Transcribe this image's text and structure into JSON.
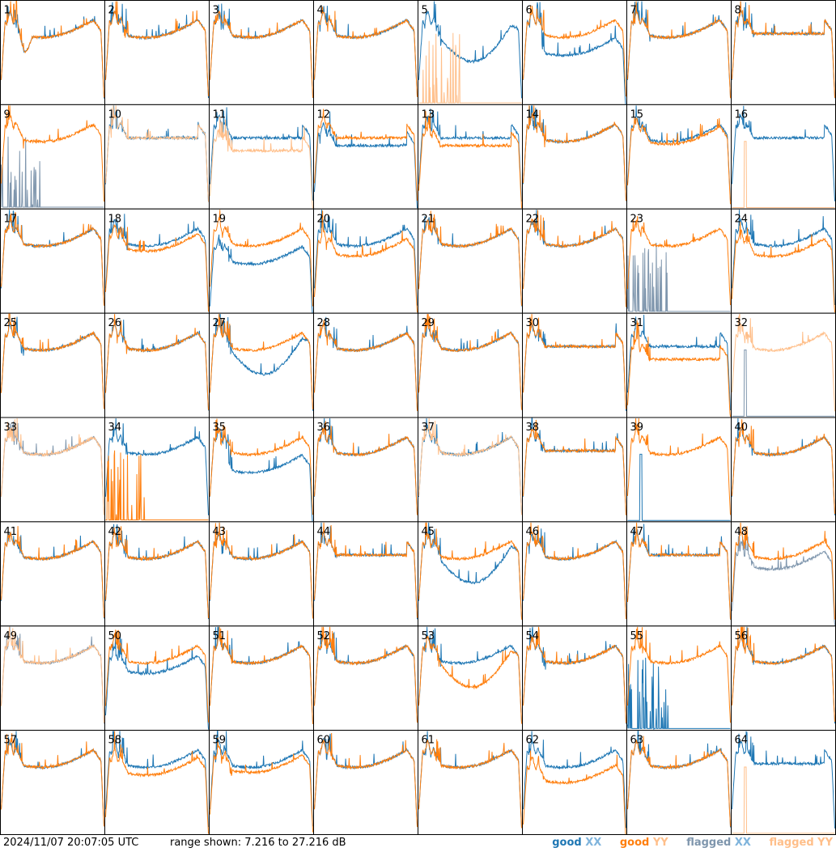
{
  "chart_data": {
    "type": "line",
    "layout_grid": "8x8",
    "timestamp": "2024/11/07 20:07:05 UTC",
    "range_text": "range shown: 7.216 to 27.216 dB",
    "ylim": [
      7.216,
      27.216
    ],
    "legend": [
      {
        "key": "good_xx",
        "prefix": "good",
        "pol": "XX",
        "color": "#1f77b4"
      },
      {
        "key": "good_yy",
        "prefix": "good",
        "pol": "YY",
        "color": "#ff7f0e"
      },
      {
        "key": "flagged_xx",
        "prefix": "flagged",
        "pol": "XX",
        "color": "#7f96ad"
      },
      {
        "key": "flagged_yy",
        "prefix": "flagged",
        "pol": "YY",
        "color": "#ffbf8a"
      }
    ],
    "panels": [
      {
        "id": "1",
        "xx": "good",
        "yy": "good",
        "shape": "dip",
        "xx_offset": 0.0,
        "yy_offset": 0.0
      },
      {
        "id": "2",
        "xx": "good",
        "yy": "good",
        "shape": "normal",
        "xx_offset": 0.0,
        "yy_offset": 0.0
      },
      {
        "id": "3",
        "xx": "good",
        "yy": "good",
        "shape": "normal",
        "xx_offset": 0.0,
        "yy_offset": 0.0
      },
      {
        "id": "4",
        "xx": "good",
        "yy": "good",
        "shape": "normal",
        "xx_offset": 0.0,
        "yy_offset": 0.0
      },
      {
        "id": "5",
        "xx": "good",
        "yy": "flagged",
        "shape": "normal",
        "xx_offset": 0.0,
        "yy_offset": 0.0,
        "xx_mod": "deepdip",
        "yy_mod": "spiky"
      },
      {
        "id": "6",
        "xx": "good",
        "yy": "good",
        "shape": "normal",
        "xx_offset": 0.0,
        "yy_offset": 0.0,
        "xx_mod": "dropped"
      },
      {
        "id": "7",
        "xx": "good",
        "yy": "good",
        "shape": "normal",
        "xx_offset": 0.0,
        "yy_offset": 0.0
      },
      {
        "id": "8",
        "xx": "good",
        "yy": "good",
        "shape": "flat",
        "xx_offset": 0.0,
        "yy_offset": 0.0
      },
      {
        "id": "9",
        "xx": "flagged",
        "yy": "good",
        "shape": "normal",
        "xx_offset": 0.0,
        "yy_offset": 0.0,
        "xx_mod": "spiky"
      },
      {
        "id": "10",
        "xx": "good",
        "yy": "flagged",
        "shape": "flat",
        "xx_offset": 0.0,
        "yy_offset": 0.0
      },
      {
        "id": "11",
        "xx": "good",
        "yy": "flagged",
        "shape": "flat",
        "xx_offset": 0.0,
        "yy_offset": -2.5
      },
      {
        "id": "12",
        "xx": "good",
        "yy": "good",
        "shape": "flat",
        "xx_offset": -1.5,
        "yy_offset": 0.0
      },
      {
        "id": "13",
        "xx": "good",
        "yy": "good",
        "shape": "flat",
        "xx_offset": 0.0,
        "yy_offset": -1.5
      },
      {
        "id": "14",
        "xx": "good",
        "yy": "good",
        "shape": "normal",
        "xx_offset": 0.0,
        "yy_offset": 0.0
      },
      {
        "id": "15",
        "xx": "good",
        "yy": "good",
        "shape": "normal",
        "xx_offset": 0.0,
        "yy_offset": -0.5
      },
      {
        "id": "16",
        "xx": "good",
        "yy": "flagged",
        "shape": "flat",
        "xx_offset": 0.0,
        "yy_offset": 0.0,
        "yy_mod": "spike"
      },
      {
        "id": "17",
        "xx": "good",
        "yy": "good",
        "shape": "normal",
        "xx_offset": 0.0,
        "yy_offset": 0.0
      },
      {
        "id": "18",
        "xx": "good",
        "yy": "good",
        "shape": "normal",
        "xx_offset": 0.0,
        "yy_offset": -1.0
      },
      {
        "id": "19",
        "xx": "good",
        "yy": "good",
        "shape": "normal",
        "xx_offset": -3.5,
        "yy_offset": 0.0
      },
      {
        "id": "20",
        "xx": "good",
        "yy": "good",
        "shape": "normal",
        "xx_offset": 0.0,
        "yy_offset": -2.0
      },
      {
        "id": "21",
        "xx": "good",
        "yy": "good",
        "shape": "normal",
        "xx_offset": 0.0,
        "yy_offset": 0.0
      },
      {
        "id": "22",
        "xx": "good",
        "yy": "good",
        "shape": "normal",
        "xx_offset": 0.0,
        "yy_offset": 0.0
      },
      {
        "id": "23",
        "xx": "flagged",
        "yy": "good",
        "shape": "normal",
        "xx_offset": 0.0,
        "yy_offset": 0.0,
        "xx_mod": "spiky"
      },
      {
        "id": "24",
        "xx": "good",
        "yy": "good",
        "shape": "normal",
        "xx_offset": 0.0,
        "yy_offset": -2.0
      },
      {
        "id": "25",
        "xx": "good",
        "yy": "good",
        "shape": "normal",
        "xx_offset": 0.0,
        "yy_offset": 0.0
      },
      {
        "id": "26",
        "xx": "good",
        "yy": "good",
        "shape": "normal",
        "xx_offset": 0.0,
        "yy_offset": 0.0
      },
      {
        "id": "27",
        "xx": "good",
        "yy": "good",
        "shape": "normal",
        "xx_offset": 0.0,
        "yy_offset": 0.0,
        "xx_mod": "deepdip"
      },
      {
        "id": "28",
        "xx": "good",
        "yy": "good",
        "shape": "normal",
        "xx_offset": 0.0,
        "yy_offset": 0.0
      },
      {
        "id": "29",
        "xx": "good",
        "yy": "good",
        "shape": "normal",
        "xx_offset": 0.0,
        "yy_offset": 0.0
      },
      {
        "id": "30",
        "xx": "good",
        "yy": "good",
        "shape": "flat",
        "xx_offset": 0.0,
        "yy_offset": 0.0
      },
      {
        "id": "31",
        "xx": "good",
        "yy": "good",
        "shape": "flat",
        "xx_offset": 0.0,
        "yy_offset": -2.5
      },
      {
        "id": "32",
        "xx": "flagged",
        "yy": "flagged",
        "shape": "normal",
        "xx_offset": 0.0,
        "yy_offset": 0.0,
        "xx_mod": "spike"
      },
      {
        "id": "33",
        "xx": "flagged",
        "yy": "flagged",
        "shape": "normal",
        "xx_offset": 0.0,
        "yy_offset": 0.0
      },
      {
        "id": "34",
        "xx": "good",
        "yy": "good",
        "shape": "normal",
        "xx_offset": 0.0,
        "yy_offset": 0.0,
        "yy_mod": "spiky"
      },
      {
        "id": "35",
        "xx": "good",
        "yy": "good",
        "shape": "normal",
        "xx_offset": 0.0,
        "yy_offset": 0.0,
        "xx_mod": "dropped"
      },
      {
        "id": "36",
        "xx": "good",
        "yy": "good",
        "shape": "normal",
        "xx_offset": 0.0,
        "yy_offset": 0.0
      },
      {
        "id": "37",
        "xx": "good",
        "yy": "flagged",
        "shape": "normal",
        "xx_offset": 0.0,
        "yy_offset": 0.0
      },
      {
        "id": "38",
        "xx": "good",
        "yy": "good",
        "shape": "flat",
        "xx_offset": 0.0,
        "yy_offset": 0.0
      },
      {
        "id": "39",
        "xx": "good",
        "yy": "good",
        "shape": "normal",
        "xx_offset": 0.0,
        "yy_offset": 0.0,
        "xx_mod": "spike"
      },
      {
        "id": "40",
        "xx": "good",
        "yy": "good",
        "shape": "normal",
        "xx_offset": 0.0,
        "yy_offset": 0.0
      },
      {
        "id": "41",
        "xx": "good",
        "yy": "good",
        "shape": "normal",
        "xx_offset": 0.0,
        "yy_offset": 0.0
      },
      {
        "id": "42",
        "xx": "good",
        "yy": "good",
        "shape": "normal",
        "xx_offset": 0.0,
        "yy_offset": 0.0
      },
      {
        "id": "43",
        "xx": "good",
        "yy": "good",
        "shape": "normal",
        "xx_offset": 0.0,
        "yy_offset": 0.0
      },
      {
        "id": "44",
        "xx": "good",
        "yy": "good",
        "shape": "flat",
        "xx_offset": 0.0,
        "yy_offset": 0.0
      },
      {
        "id": "45",
        "xx": "good",
        "yy": "good",
        "shape": "normal",
        "xx_offset": 0.0,
        "yy_offset": 0.0,
        "xx_mod": "deepdip"
      },
      {
        "id": "46",
        "xx": "good",
        "yy": "good",
        "shape": "normal",
        "xx_offset": 0.0,
        "yy_offset": 0.0
      },
      {
        "id": "47",
        "xx": "good",
        "yy": "good",
        "shape": "flat",
        "xx_offset": 0.0,
        "yy_offset": 0.0
      },
      {
        "id": "48",
        "xx": "flagged",
        "yy": "good",
        "shape": "normal",
        "xx_offset": -2.0,
        "yy_offset": 0.0
      },
      {
        "id": "49",
        "xx": "flagged",
        "yy": "flagged",
        "shape": "normal",
        "xx_offset": 0.0,
        "yy_offset": 0.0
      },
      {
        "id": "50",
        "xx": "good",
        "yy": "good",
        "shape": "normal",
        "xx_offset": -2.0,
        "yy_offset": 0.0
      },
      {
        "id": "51",
        "xx": "good",
        "yy": "good",
        "shape": "normal",
        "xx_offset": 0.0,
        "yy_offset": 0.0
      },
      {
        "id": "52",
        "xx": "good",
        "yy": "good",
        "shape": "normal",
        "xx_offset": 0.0,
        "yy_offset": 0.0
      },
      {
        "id": "53",
        "xx": "good",
        "yy": "good",
        "shape": "normal",
        "xx_offset": 0.0,
        "yy_offset": 0.0,
        "yy_mod": "deepdip"
      },
      {
        "id": "54",
        "xx": "good",
        "yy": "good",
        "shape": "normal",
        "xx_offset": 0.0,
        "yy_offset": 0.0
      },
      {
        "id": "55",
        "xx": "good",
        "yy": "good",
        "shape": "normal",
        "xx_offset": 0.0,
        "yy_offset": 0.0,
        "xx_mod": "spiky"
      },
      {
        "id": "56",
        "xx": "good",
        "yy": "good",
        "shape": "normal",
        "xx_offset": 0.0,
        "yy_offset": 0.0
      },
      {
        "id": "57",
        "xx": "good",
        "yy": "good",
        "shape": "normal",
        "xx_offset": 0.0,
        "yy_offset": 0.0
      },
      {
        "id": "58",
        "xx": "good",
        "yy": "good",
        "shape": "normal",
        "xx_offset": 0.0,
        "yy_offset": -1.5
      },
      {
        "id": "59",
        "xx": "good",
        "yy": "good",
        "shape": "normal",
        "xx_offset": 0.0,
        "yy_offset": -1.0
      },
      {
        "id": "60",
        "xx": "good",
        "yy": "good",
        "shape": "normal",
        "xx_offset": 0.0,
        "yy_offset": 0.0
      },
      {
        "id": "61",
        "xx": "good",
        "yy": "good",
        "shape": "normal",
        "xx_offset": 0.0,
        "yy_offset": 0.0
      },
      {
        "id": "62",
        "xx": "good",
        "yy": "good",
        "shape": "normal",
        "xx_offset": 0.0,
        "yy_offset": -3.0
      },
      {
        "id": "63",
        "xx": "good",
        "yy": "good",
        "shape": "normal",
        "xx_offset": 0.0,
        "yy_offset": 0.0
      },
      {
        "id": "64",
        "xx": "good",
        "yy": "flagged",
        "shape": "flat",
        "xx_offset": 0.0,
        "yy_offset": 0.0,
        "yy_mod": "spike"
      }
    ]
  }
}
